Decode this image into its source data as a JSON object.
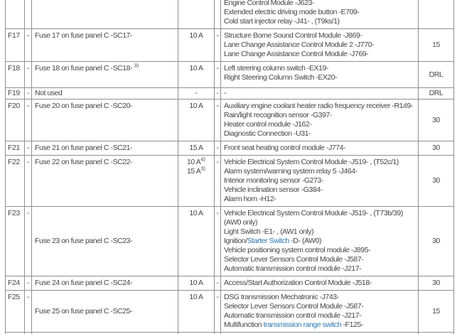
{
  "colors": {
    "link_blue": "#2d77b3",
    "text_gray": "#454545",
    "border_gray": "#8f8f8f"
  },
  "table": {
    "rows": [
      {
        "id": "",
        "dash1": "",
        "desc": "",
        "amp": "",
        "dash2": "",
        "value": "",
        "components": [
          "Engine Control Module -J623-",
          "Extended electric driving mode button -E709-",
          "Cold start injector relay -J41- , (T9ks/1)"
        ]
      },
      {
        "id": "F17",
        "dash1": "-",
        "desc": "Fuse 17 on fuse panel C -SC17-",
        "amp": "10 A",
        "dash2": "-",
        "value": "15",
        "components": [
          "Structure Borne Sound Control Module -J869-",
          "Lane Change Assistance Control Module 2 -J770-",
          "Lane Change Assistance Control Module -J769-"
        ]
      },
      {
        "id": "F18",
        "dash1": "-",
        "desc": "Fuse 18 on fuse panel C -SC18- ",
        "desc_sup": "3)",
        "amp": "10 A",
        "dash2": "-",
        "value": "DRL",
        "components": [
          "Left steering column switch -EX19-",
          "Right Steering Column Switch -EX20-"
        ]
      },
      {
        "id": "F19",
        "dash1": "-",
        "desc": "Not used",
        "amp": "-",
        "dash2": "-",
        "value": "DRL",
        "components": [
          "-"
        ]
      },
      {
        "id": "F20",
        "dash1": "-",
        "desc": "Fuse 20 on fuse panel C -SC20-",
        "amp": "10 A",
        "dash2": "-",
        "value": "30",
        "components": [
          "Auxiliary engine coolant heater radio frequency receiver -R149-",
          "Rain/light recognition sensor -G397-",
          "Heater control module -J162-",
          "Diagnostic Connection -U31-"
        ]
      },
      {
        "id": "F21",
        "dash1": "-",
        "desc": "Fuse 21 on fuse panel C -SC21-",
        "amp": "15 A",
        "dash2": "-",
        "value": "30",
        "components": [
          "Front seat heating control module -J774-"
        ]
      },
      {
        "id": "F22",
        "dash1": "-",
        "desc": "Fuse 22 on fuse panel C -SC22-",
        "dash2": "-",
        "value": "30",
        "amp_lines": [
          {
            "text": "10 A",
            "sup": "4)"
          },
          {
            "text": "15 A",
            "sup": "3)"
          }
        ],
        "components": [
          "Vehicle Electrical System Control Module -J519- , (T52c/1)",
          "Alarm system/warning system relay 5 -J464-",
          "Interior monitoring sensor -G273-",
          "Vehicle inclination sensor -G384-",
          "Alarm horn -H12-"
        ]
      },
      {
        "id": "F23",
        "dash1": "-",
        "desc": "Fuse 23 on fuse panel C -SC23-",
        "amp": "10 A",
        "dash2": "-",
        "value": "30",
        "components": [
          "Vehicle Electrical System Control Module -J519- , (T73b/39) (AW0 only)",
          "Light Switch -E1- , (AW1 only)",
          {
            "pre": "Ignition/",
            "link": "Starter Switch",
            "post": " -D- (AW0)"
          },
          "Vehicle positioning system control module -J895-",
          "Selector Lever Sensors Control Module -J587-",
          "Automatic transmission control module -J217-"
        ]
      },
      {
        "id": "F24",
        "dash1": "-",
        "desc": "Fuse 24 on fuse panel C -SC24-",
        "amp": "10 A",
        "dash2": "-",
        "value": "30",
        "components": [
          "Access/Start Authorization Control Module -J518-"
        ]
      },
      {
        "id": "F25",
        "dash1": "-",
        "desc": "Fuse 25 on fuse panel C -SC25-",
        "amp": "10 A",
        "dash2": "-",
        "value": "15",
        "components": [
          "DSG transmission Mechatronic -J743-",
          "Selector Lever Sensors Control Module -J587-",
          "Automatic transmission control module -J217-",
          {
            "pre": "Multifunction ",
            "link": "transmission range switch",
            "post": " -F125-"
          }
        ]
      }
    ]
  }
}
